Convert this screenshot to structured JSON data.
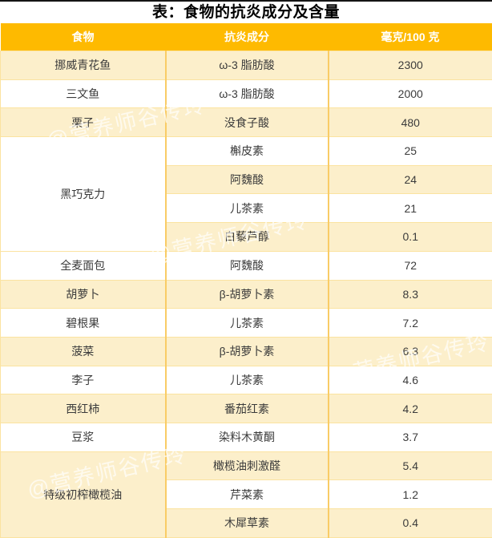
{
  "title": "表：食物的抗炎成分及含量",
  "watermark": "@营养师谷传玲",
  "colors": {
    "header_bg": "#FEBA00",
    "header_text": "#FFFFFF",
    "row_yellow": "#FCEFCB",
    "row_white": "#FFFFFF",
    "border_horizontal": "#FBE3A0",
    "border_vertical": "#F9CC66",
    "cell_text": "#3B3B3B"
  },
  "table": {
    "headers": [
      "食物",
      "抗炎成分",
      "毫克/100 克"
    ],
    "groups": [
      {
        "food": "挪威青花鱼",
        "rows": [
          {
            "component": "ω-3 脂肪酸",
            "amount": "2300"
          }
        ]
      },
      {
        "food": "三文鱼",
        "rows": [
          {
            "component": "ω-3 脂肪酸",
            "amount": "2000"
          }
        ]
      },
      {
        "food": "栗子",
        "rows": [
          {
            "component": "没食子酸",
            "amount": "480"
          }
        ]
      },
      {
        "food": "黑巧克力",
        "rows": [
          {
            "component": "槲皮素",
            "amount": "25"
          },
          {
            "component": "阿魏酸",
            "amount": "24"
          },
          {
            "component": "儿茶素",
            "amount": "21"
          },
          {
            "component": "白藜芦醇",
            "amount": "0.1"
          }
        ]
      },
      {
        "food": "全麦面包",
        "rows": [
          {
            "component": "阿魏酸",
            "amount": "72"
          }
        ]
      },
      {
        "food": "胡萝卜",
        "rows": [
          {
            "component": "β-胡萝卜素",
            "amount": "8.3"
          }
        ]
      },
      {
        "food": "碧根果",
        "rows": [
          {
            "component": "儿茶素",
            "amount": "7.2"
          }
        ]
      },
      {
        "food": "菠菜",
        "rows": [
          {
            "component": "β-胡萝卜素",
            "amount": "6.3"
          }
        ]
      },
      {
        "food": "李子",
        "rows": [
          {
            "component": "儿茶素",
            "amount": "4.6"
          }
        ]
      },
      {
        "food": "西红柿",
        "rows": [
          {
            "component": "番茄红素",
            "amount": "4.2"
          }
        ]
      },
      {
        "food": "豆浆",
        "rows": [
          {
            "component": "染料木黄酮",
            "amount": "3.7"
          }
        ]
      },
      {
        "food": "特级初榨橄榄油",
        "rows": [
          {
            "component": "橄榄油刺激醛",
            "amount": "5.4"
          },
          {
            "component": "芹菜素",
            "amount": "1.2"
          },
          {
            "component": "木犀草素",
            "amount": "0.4"
          }
        ]
      }
    ]
  }
}
